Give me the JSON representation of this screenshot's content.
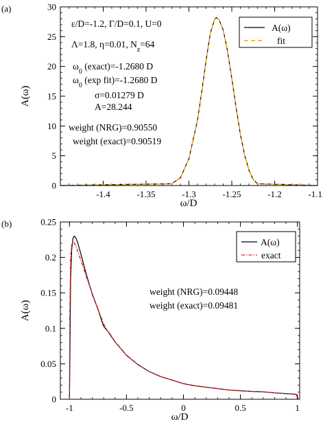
{
  "chart_data": [
    {
      "panel_label": "(a)",
      "type": "line",
      "xlabel": "ω/D",
      "ylabel": "A(ω)",
      "xlim": [
        -1.45,
        -1.15
      ],
      "ylim": [
        0,
        30
      ],
      "xticks": [
        -1.4,
        -1.35,
        -1.3,
        -1.25,
        -1.2,
        -1.15
      ],
      "xtick_labels": [
        "-1.4",
        "-1.35",
        "-1.3",
        "-1.25",
        "-1.2",
        "-1.15"
      ],
      "yticks": [
        0,
        5,
        10,
        15,
        20,
        25,
        30
      ],
      "ytick_labels": [
        "0",
        "5",
        "10",
        "15",
        "20",
        "25",
        "30"
      ],
      "legend_position": "top-right",
      "series": [
        {
          "name": "A(ω)",
          "color": "#000000",
          "dash": "solid",
          "x": [
            -1.45,
            -1.32,
            -1.31,
            -1.3,
            -1.29,
            -1.285,
            -1.28,
            -1.275,
            -1.27,
            -1.268,
            -1.265,
            -1.26,
            -1.255,
            -1.25,
            -1.245,
            -1.24,
            -1.235,
            -1.23,
            -1.225,
            -1.22,
            -1.15
          ],
          "y": [
            0,
            0.3,
            1.3,
            4.5,
            11.0,
            15.8,
            21.0,
            25.6,
            27.9,
            28.2,
            27.9,
            26.1,
            22.6,
            18.0,
            13.1,
            8.6,
            5.1,
            2.6,
            1.0,
            0.3,
            0
          ]
        },
        {
          "name": "fit",
          "color": "#f2a118",
          "dash": "dashed",
          "x": [
            -1.45,
            -1.32,
            -1.31,
            -1.3,
            -1.29,
            -1.285,
            -1.28,
            -1.275,
            -1.27,
            -1.268,
            -1.265,
            -1.26,
            -1.255,
            -1.25,
            -1.245,
            -1.24,
            -1.235,
            -1.23,
            -1.225,
            -1.22,
            -1.15
          ],
          "y": [
            0,
            0.3,
            1.3,
            4.5,
            11.0,
            15.8,
            21.0,
            25.6,
            27.9,
            28.2,
            27.9,
            26.1,
            22.6,
            18.0,
            13.1,
            8.6,
            5.1,
            2.6,
            1.0,
            0.3,
            0
          ]
        }
      ],
      "annotations": [
        "ε/D=-1.2, Γ/D=0.1, U=0",
        "Λ=1.8, η=0.01, N_z=64",
        "ω_0 (exact)=-1.2680 D",
        "ω_0 (exp fit)=-1.2680 D",
        "σ=0.01279 D",
        "A=28.244",
        "weight (NRG)=0.90550",
        "weight (exact)=0.90519"
      ]
    },
    {
      "panel_label": "(b)",
      "type": "line",
      "xlabel": "ω/D",
      "ylabel": "A(ω)",
      "xlim": [
        -1.08,
        1.02
      ],
      "ylim": [
        0,
        0.25
      ],
      "xticks": [
        -1,
        -0.5,
        0,
        0.5,
        1
      ],
      "xtick_labels": [
        "-1",
        "-0.5",
        "0",
        "0.5",
        "1"
      ],
      "yticks": [
        0,
        0.05,
        0.1,
        0.15,
        0.2,
        0.25
      ],
      "ytick_labels": [
        "0",
        "0.05",
        "0.1",
        "0.15",
        "0.2",
        "0.25"
      ],
      "legend_position": "top-right",
      "series": [
        {
          "name": "A(ω)",
          "color": "#000000",
          "dash": "solid",
          "x": [
            -1.0,
            -0.995,
            -0.99,
            -0.98,
            -0.97,
            -0.96,
            -0.95,
            -0.94,
            -0.93,
            -0.9,
            -0.85,
            -0.8,
            -0.75,
            -0.72,
            -0.7,
            -0.65,
            -0.6,
            -0.5,
            -0.4,
            -0.3,
            -0.2,
            -0.1,
            0.0,
            0.1,
            0.2,
            0.3,
            0.4,
            0.5,
            0.6,
            0.7,
            0.8,
            0.9,
            0.95,
            0.99,
            1.0,
            1.005
          ],
          "y": [
            0.0,
            0.08,
            0.17,
            0.212,
            0.226,
            0.23,
            0.229,
            0.226,
            0.222,
            0.205,
            0.175,
            0.148,
            0.127,
            0.112,
            0.103,
            0.093,
            0.081,
            0.062,
            0.049,
            0.039,
            0.032,
            0.027,
            0.022,
            0.019,
            0.017,
            0.015,
            0.013,
            0.012,
            0.011,
            0.0105,
            0.009,
            0.008,
            0.0075,
            0.007,
            0.004,
            0.0
          ]
        },
        {
          "name": "exact",
          "color": "#d9202a",
          "dash": "dashdot",
          "x": [
            -1.0,
            -0.997,
            -0.99,
            -0.98,
            -0.97,
            -0.96,
            -0.95,
            -0.94,
            -0.93,
            -0.9,
            -0.85,
            -0.8,
            -0.75,
            -0.7,
            -0.65,
            -0.6,
            -0.5,
            -0.4,
            -0.3,
            -0.2,
            -0.1,
            0.0,
            0.1,
            0.2,
            0.3,
            0.4,
            0.5,
            0.6,
            0.7,
            0.8,
            0.9,
            0.95,
            0.99,
            1.0
          ],
          "y": [
            0.0,
            0.12,
            0.2,
            0.218,
            0.222,
            0.221,
            0.218,
            0.215,
            0.21,
            0.196,
            0.172,
            0.149,
            0.127,
            0.106,
            0.092,
            0.081,
            0.062,
            0.049,
            0.039,
            0.032,
            0.027,
            0.022,
            0.019,
            0.017,
            0.015,
            0.013,
            0.012,
            0.011,
            0.0105,
            0.009,
            0.008,
            0.0075,
            0.007,
            0.0
          ]
        }
      ],
      "annotations": [
        "weight (NRG)=0.09448",
        "weight (exact)=0.09481"
      ]
    }
  ]
}
